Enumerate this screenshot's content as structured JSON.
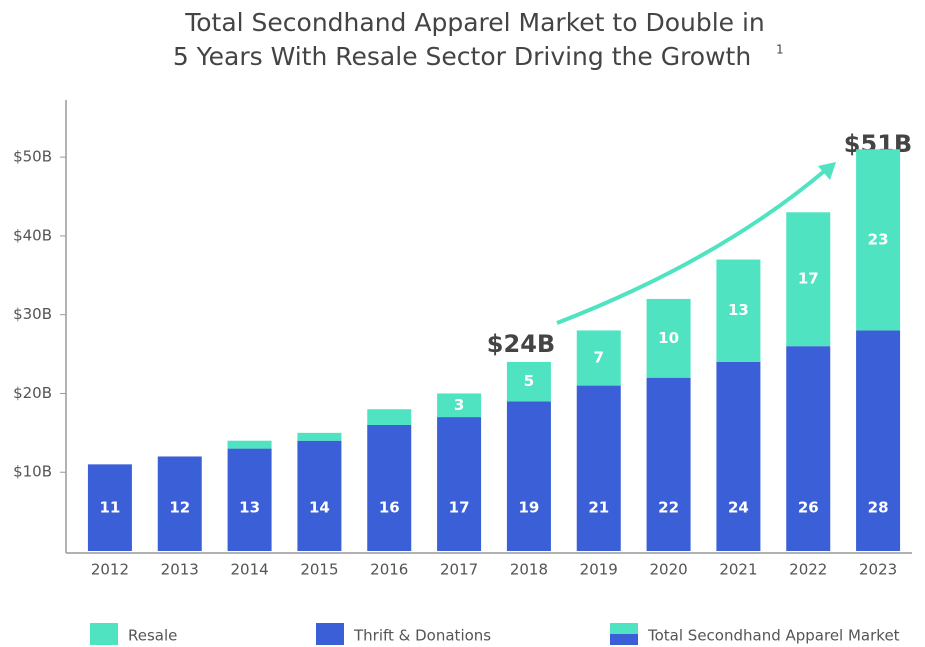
{
  "chart_data": {
    "type": "stacked_bar",
    "title": [
      "Total Secondhand Apparel Market to Double in",
      "5 Years With Resale Sector Driving the Growth"
    ],
    "title_footnote": "1",
    "categories": [
      "2012",
      "2013",
      "2014",
      "2015",
      "2016",
      "2017",
      "2018",
      "2019",
      "2020",
      "2021",
      "2022",
      "2023"
    ],
    "series": [
      {
        "name": "Thrift & Donations",
        "color": "#3a5fd6",
        "values": [
          11,
          12,
          13,
          14,
          16,
          17,
          19,
          21,
          22,
          24,
          26,
          28
        ]
      },
      {
        "name": "Resale",
        "color": "#4fe3c1",
        "values": [
          0,
          0,
          1,
          1,
          2,
          3,
          5,
          7,
          10,
          13,
          17,
          23
        ],
        "value_labels": [
          null,
          null,
          null,
          null,
          null,
          "3",
          "5",
          "7",
          "10",
          "13",
          "17",
          "23"
        ]
      }
    ],
    "legend_total": "Total Secondhand Apparel Market",
    "annotations": [
      "$24B",
      "$51B"
    ],
    "ylim": [
      0,
      57
    ],
    "yticks": [
      {
        "value": 10,
        "label": "$10B"
      },
      {
        "value": 20,
        "label": "$20B"
      },
      {
        "value": 30,
        "label": "$30B"
      },
      {
        "value": 40,
        "label": "$40B"
      },
      {
        "value": 50,
        "label": "$50B"
      }
    ],
    "grid": false
  }
}
